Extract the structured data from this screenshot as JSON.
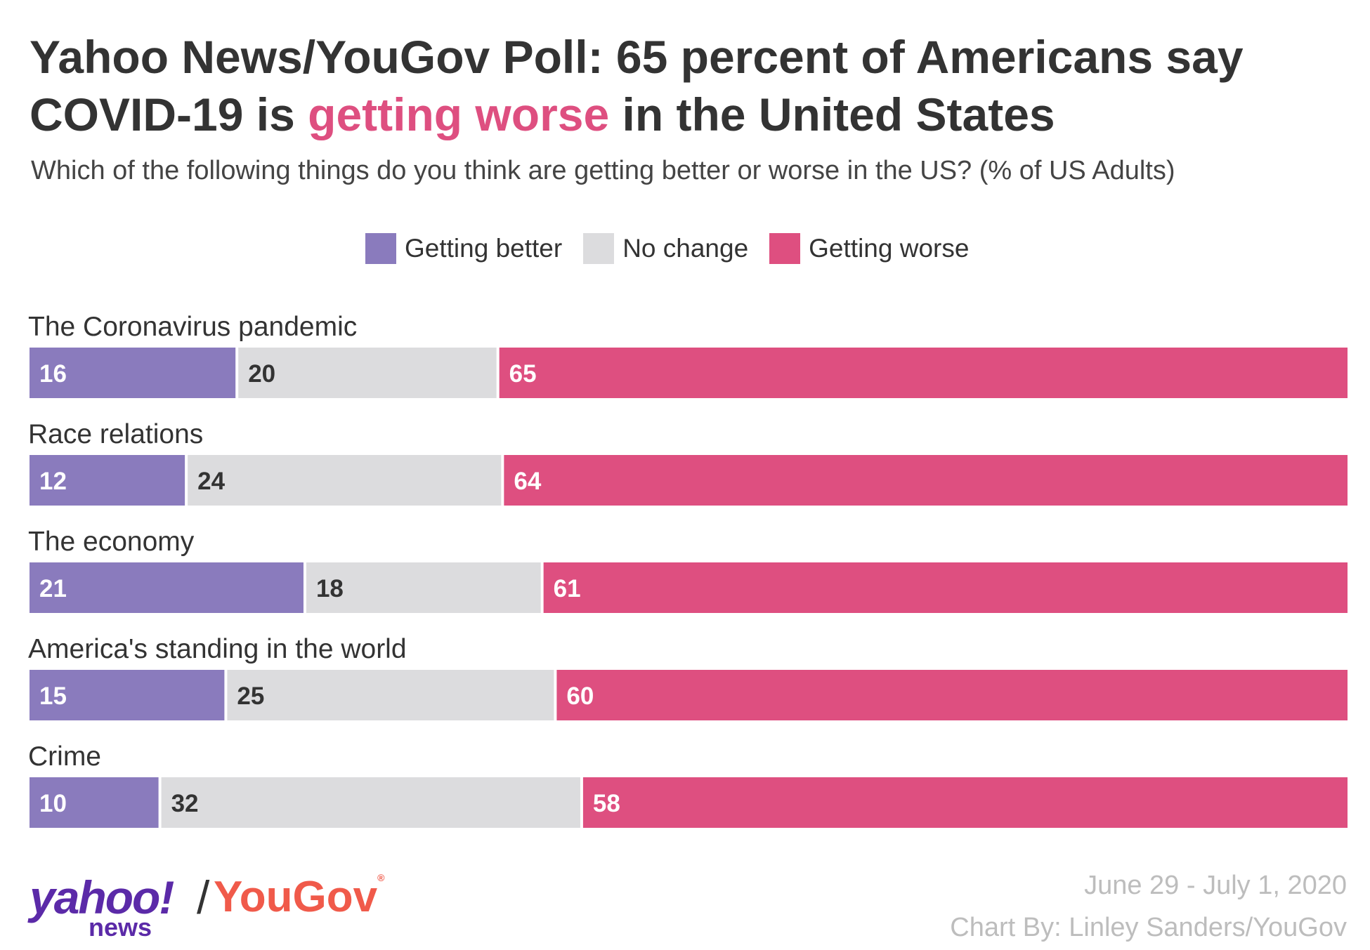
{
  "title_part1": "Yahoo News/YouGov Poll: 65 percent of Americans say COVID-19 is ",
  "title_highlight": "getting worse",
  "title_part2": " in the United States",
  "subtitle": "Which of the following things do you think are getting better or worse in the US? (% of US Adults)",
  "date": "June 29 - July 1, 2020",
  "credit": "Chart By: Linley Sanders/YouGov",
  "logo": {
    "yahoo": "yahoo!",
    "news": "news",
    "slash": "/",
    "yougov": "YouGov",
    "registered": "®"
  },
  "colors": {
    "better": "#8a7bbd",
    "nochange": "#dcdcde",
    "worse": "#de4f80",
    "highlight": "#de4f80"
  },
  "chart_data": {
    "type": "bar",
    "orientation": "horizontal",
    "stacked": true,
    "xlim": [
      0,
      100
    ],
    "categories": [
      "The Coronavirus pandemic",
      "Race relations",
      "The economy",
      "America's standing in the world",
      "Crime"
    ],
    "series": [
      {
        "name": "Getting better",
        "values": [
          16,
          12,
          21,
          15,
          10
        ]
      },
      {
        "name": "No change",
        "values": [
          20,
          24,
          18,
          25,
          32
        ]
      },
      {
        "name": "Getting worse",
        "values": [
          65,
          64,
          61,
          60,
          58
        ]
      }
    ],
    "legend_position": "top-center",
    "grid": false
  }
}
